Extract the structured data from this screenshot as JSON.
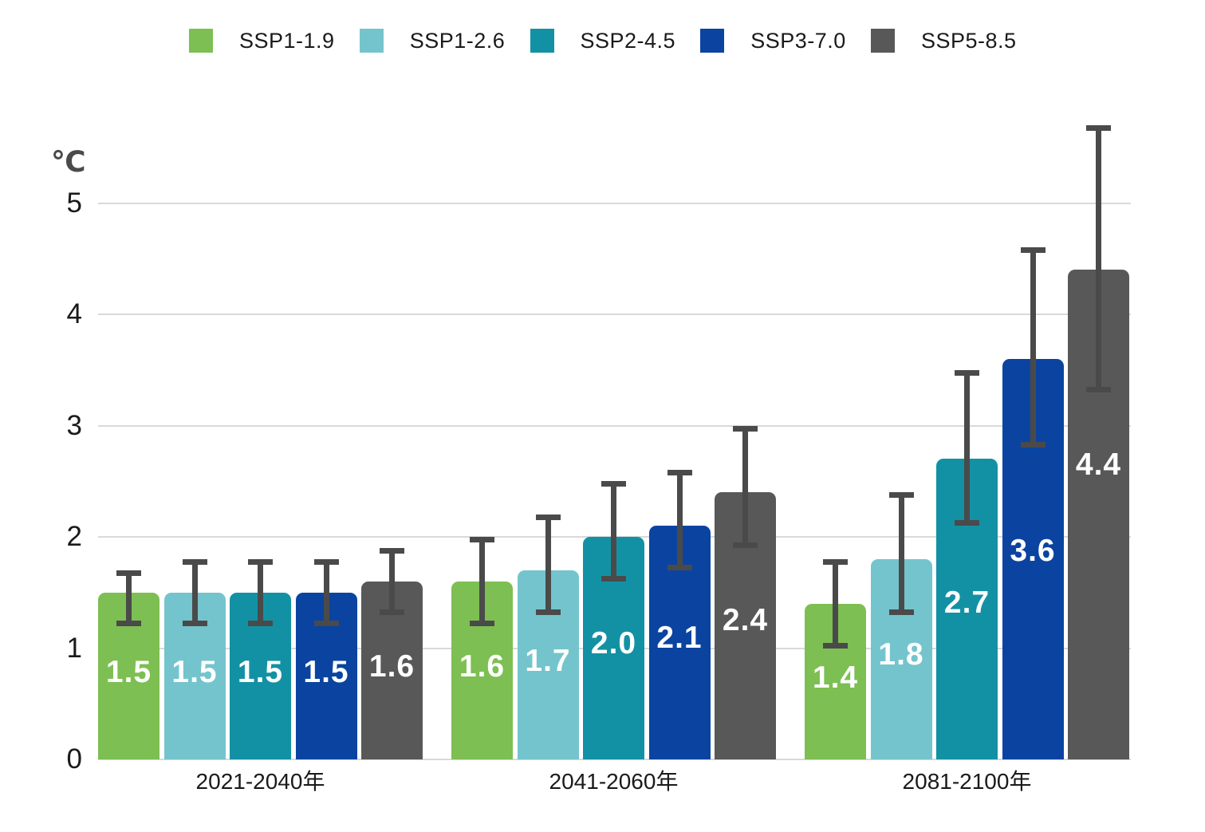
{
  "chart_data": {
    "type": "bar",
    "title": "",
    "unit_label": "℃",
    "xlabel": "",
    "ylabel": "℃",
    "categories": [
      "2021-2040年",
      "2041-2060年",
      "2081-2100年"
    ],
    "series": [
      {
        "name": "SSP1-1.9",
        "color": "#7dbf52",
        "values": [
          1.5,
          1.6,
          1.4
        ],
        "error_ranges": [
          [
            1.2,
            1.7
          ],
          [
            1.2,
            2.0
          ],
          [
            1.0,
            1.8
          ]
        ]
      },
      {
        "name": "SSP1-2.6",
        "color": "#74c4cd",
        "values": [
          1.5,
          1.7,
          1.8
        ],
        "error_ranges": [
          [
            1.2,
            1.8
          ],
          [
            1.3,
            2.2
          ],
          [
            1.3,
            2.4
          ]
        ]
      },
      {
        "name": "SSP2-4.5",
        "color": "#1391a4",
        "values": [
          1.5,
          2.0,
          2.7
        ],
        "error_ranges": [
          [
            1.2,
            1.8
          ],
          [
            1.6,
            2.5
          ],
          [
            2.1,
            3.5
          ]
        ]
      },
      {
        "name": "SSP3-7.0",
        "color": "#0a44a0",
        "values": [
          1.5,
          2.1,
          3.6
        ],
        "error_ranges": [
          [
            1.2,
            1.8
          ],
          [
            1.7,
            2.6
          ],
          [
            2.8,
            4.6
          ]
        ]
      },
      {
        "name": "SSP5-8.5",
        "color": "#585858",
        "values": [
          1.6,
          2.4,
          4.4
        ],
        "error_ranges": [
          [
            1.3,
            1.9
          ],
          [
            1.9,
            3.0
          ],
          [
            3.3,
            5.7
          ]
        ]
      }
    ],
    "value_label_format": "one_decimal",
    "y_ticks": [
      "0",
      "1",
      "2",
      "3",
      "4",
      "5"
    ],
    "ylim": [
      0,
      5.9
    ],
    "grid": true,
    "error_bars": true,
    "legend_position": "top"
  },
  "style": {
    "background": "#ffffff",
    "grid_color": "#d9d9d9",
    "error_bar_color": "#4a4a4a",
    "axis_text_color": "#1a1a1a",
    "unit_text_color": "#4a4a4a",
    "bar_label_color": "#ffffff"
  }
}
